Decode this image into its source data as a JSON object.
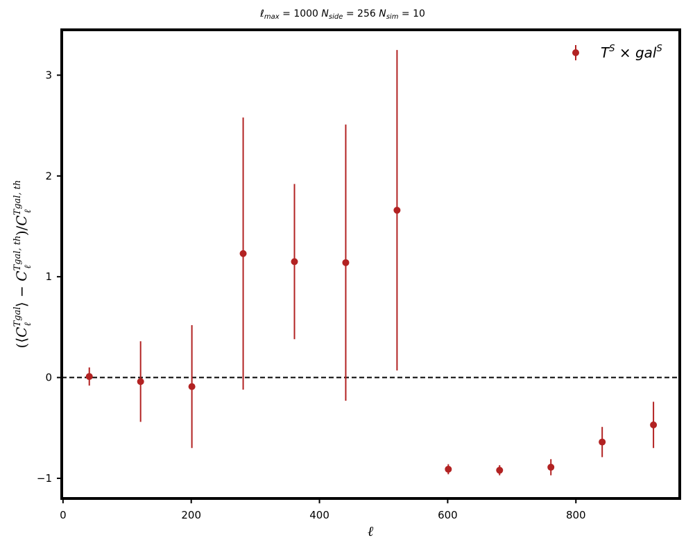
{
  "chart_data": {
    "type": "scatter",
    "title": "ℓmax = 1000 Nside = 256 Nsim = 10",
    "xlabel": "ℓ",
    "ylabel": "(⟨C_ℓ^Tgal⟩ − C_ℓ^Tgal,th)/C_ℓ^Tgal,th",
    "xlim": [
      -2,
      962
    ],
    "ylim": [
      -1.2,
      3.45
    ],
    "xticks": [
      0,
      200,
      400,
      600,
      800
    ],
    "yticks": [
      -1,
      0,
      1,
      2,
      3
    ],
    "xtick_labels": [
      "0",
      "200",
      "400",
      "600",
      "800"
    ],
    "ytick_labels": [
      "−1",
      "0",
      "1",
      "2",
      "3"
    ],
    "reference_line": {
      "y": 0,
      "style": "dashed",
      "color": "#000000"
    },
    "legend_position": "top-right",
    "grid": false,
    "series": [
      {
        "name": "T^S × gal^S",
        "color": "#b22222",
        "x": [
          41,
          121,
          201,
          281,
          361,
          441,
          521,
          601,
          681,
          761,
          841,
          921
        ],
        "y": [
          0.01,
          -0.04,
          -0.09,
          1.23,
          1.15,
          1.14,
          1.66,
          -0.91,
          -0.92,
          -0.89,
          -0.64,
          -0.47
        ],
        "yerr": [
          0.09,
          0.4,
          0.61,
          1.35,
          0.77,
          1.37,
          1.59,
          0.05,
          0.05,
          0.08,
          0.15,
          0.23
        ]
      }
    ]
  }
}
